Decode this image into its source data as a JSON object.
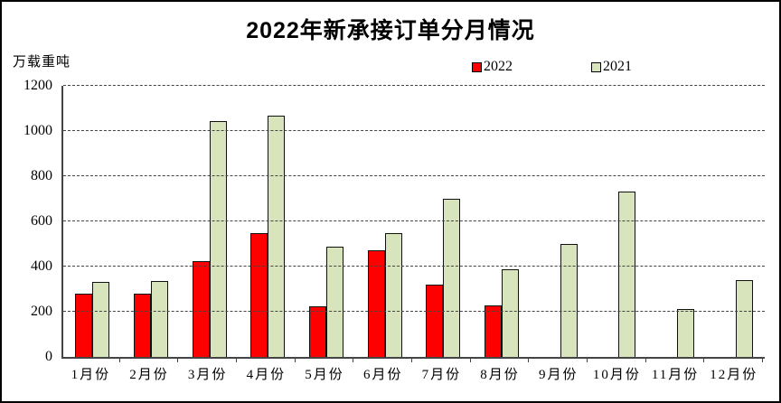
{
  "chart_data": {
    "type": "bar",
    "title": "2022年新承接订单分月情况",
    "unit_label": "万载重吨",
    "categories": [
      "1月份",
      "2月份",
      "3月份",
      "4月份",
      "5月份",
      "6月份",
      "7月份",
      "8月份",
      "9月份",
      "10月份",
      "11月份",
      "12月份"
    ],
    "series": [
      {
        "name": "2022",
        "color": "#ff0000",
        "values": [
          280,
          282,
          426,
          547,
          225,
          471,
          320,
          230,
          null,
          null,
          null,
          null
        ]
      },
      {
        "name": "2021",
        "color": "#d8e4bc",
        "values": [
          334,
          337,
          1044,
          1070,
          487,
          550,
          699,
          388,
          501,
          732,
          214,
          340
        ]
      }
    ],
    "yticks": [
      0,
      200,
      400,
      600,
      800,
      1000,
      1200
    ],
    "ylim": [
      0,
      1200
    ],
    "xlabel": "",
    "ylabel": "万载重吨",
    "grid": "dashed horizontal",
    "legend_position": "top-right"
  }
}
